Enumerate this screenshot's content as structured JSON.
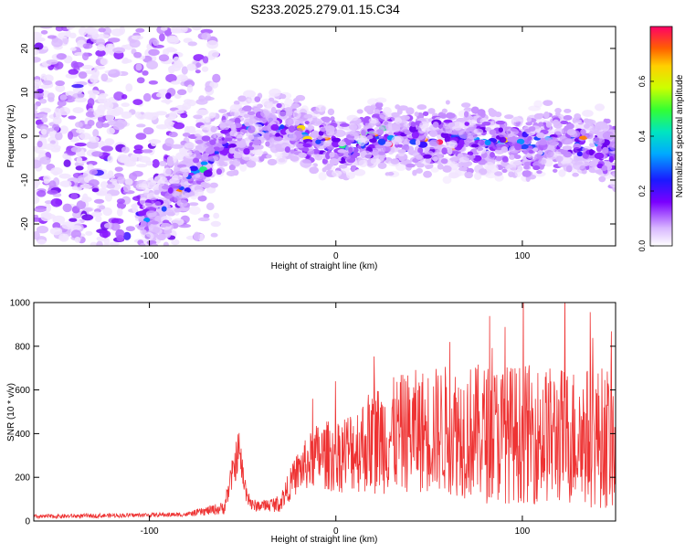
{
  "figure_title": "S233.2025.279.01.15.C34",
  "chart_data": [
    {
      "type": "heatmap",
      "xlabel": "Height of straight line (km)",
      "ylabel": "Frequency (Hz)",
      "xlim": [
        -162,
        150
      ],
      "ylim": [
        -25,
        25
      ],
      "x_ticks": [
        -100,
        0,
        100
      ],
      "y_ticks": [
        -20,
        -10,
        0,
        10,
        20
      ],
      "x_tick_labels": [
        "-100",
        "0",
        "100"
      ],
      "y_tick_labels": [
        "-20",
        "-10",
        "0",
        "10",
        "20"
      ],
      "colorbar": {
        "label": "Normalized spectral amplitude",
        "range": [
          0.0,
          0.8
        ],
        "ticks": [
          0.0,
          0.2,
          0.4,
          0.6
        ],
        "tick_labels": [
          "0.0",
          "0.2",
          "0.4",
          "0.6"
        ]
      },
      "ridge": {
        "description_x": [
          -100,
          -85,
          -70,
          -62,
          -55,
          -40,
          -30,
          -20,
          -10,
          0,
          10,
          20,
          40,
          60,
          80,
          100,
          120,
          140,
          150
        ],
        "description_y": [
          -19,
          -12,
          -6,
          -2,
          0,
          2,
          2,
          1,
          -1,
          -2,
          -2,
          0,
          -1,
          -1,
          -1,
          -2,
          -1,
          -2,
          -4
        ]
      }
    },
    {
      "type": "line",
      "xlabel": "Height of straight line (km)",
      "ylabel": "SNR (10 * v/v)",
      "xlim": [
        -162,
        150
      ],
      "ylim": [
        0,
        1000
      ],
      "x_ticks": [
        -100,
        0,
        100
      ],
      "y_ticks": [
        0,
        200,
        400,
        600,
        800,
        1000
      ],
      "x_tick_labels": [
        "-100",
        "0",
        "100"
      ],
      "y_tick_labels": [
        "0",
        "200",
        "400",
        "600",
        "800",
        "1000"
      ],
      "series": [
        {
          "name": "SNR",
          "color": "#ee3333",
          "envelope_x": [
            -162,
            -80,
            -60,
            -55,
            -52,
            -49,
            -45,
            -40,
            -30,
            -25,
            -20,
            -10,
            0,
            10,
            20,
            40,
            60,
            80,
            100,
            120,
            150
          ],
          "envelope_mean": [
            20,
            30,
            60,
            230,
            330,
            160,
            70,
            70,
            80,
            160,
            230,
            300,
            300,
            330,
            370,
            410,
            420,
            400,
            400,
            390,
            380
          ],
          "envelope_spread": [
            10,
            10,
            30,
            80,
            100,
            60,
            30,
            25,
            40,
            70,
            100,
            150,
            170,
            200,
            250,
            280,
            300,
            320,
            320,
            320,
            330
          ],
          "peak_values": [
            1000,
            1000,
            1000
          ]
        }
      ]
    }
  ]
}
